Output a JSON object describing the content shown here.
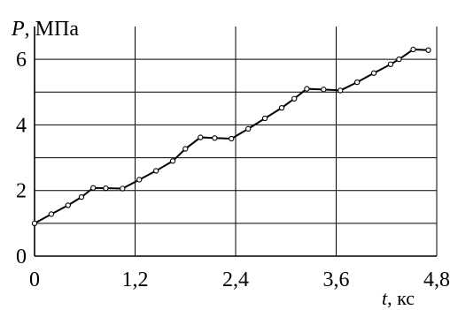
{
  "chart_data": {
    "type": "line",
    "xlabel_var": "t",
    "xlabel_unit": ", кс",
    "ylabel_var": "P",
    "ylabel_unit": ", МПа",
    "xlim": [
      0,
      4.8
    ],
    "ylim": [
      0,
      7
    ],
    "x_ticks": [
      0,
      1.2,
      2.4,
      3.6,
      4.8
    ],
    "x_tick_labels": [
      "0",
      "1,2",
      "2,4",
      "3,6",
      "4,8"
    ],
    "y_ticks": [
      0,
      2,
      4,
      6
    ],
    "y_tick_labels": [
      "0",
      "2",
      "4",
      "6"
    ],
    "y_minor_grid": [
      1,
      3,
      5
    ],
    "grid": true,
    "colors": {
      "line": "#000000",
      "grid": "#000000",
      "marker_fill": "#ffffff"
    },
    "series": [
      {
        "x": [
          0,
          0.2,
          0.4,
          0.56,
          0.7,
          0.85,
          1.05,
          1.25,
          1.45,
          1.65,
          1.8,
          1.98,
          2.15,
          2.35,
          2.55,
          2.75,
          2.95,
          3.1,
          3.25,
          3.45,
          3.65,
          3.85,
          4.05,
          4.25,
          4.35,
          4.52,
          4.7
        ],
        "y": [
          1.0,
          1.28,
          1.55,
          1.8,
          2.08,
          2.07,
          2.06,
          2.33,
          2.6,
          2.9,
          3.27,
          3.62,
          3.6,
          3.58,
          3.88,
          4.2,
          4.52,
          4.8,
          5.1,
          5.08,
          5.05,
          5.3,
          5.58,
          5.85,
          6.0,
          6.3,
          6.28
        ]
      }
    ]
  }
}
